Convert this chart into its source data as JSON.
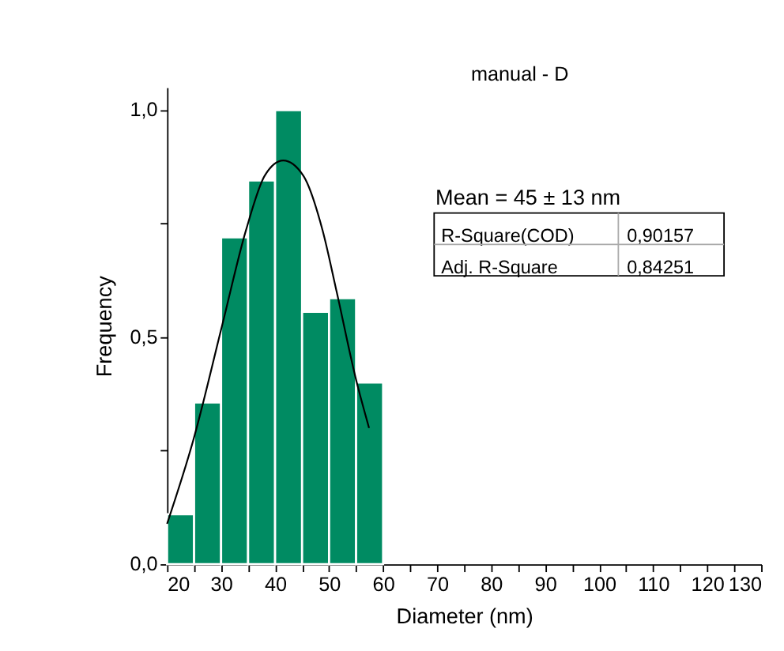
{
  "chart_data": {
    "type": "histogram",
    "title": "manual - D",
    "xlabel": "Diameter (nm)",
    "ylabel": "Frequency",
    "bins": [
      20,
      25,
      30,
      35,
      40,
      45,
      50,
      55,
      60
    ],
    "values": [
      0.11,
      0.356,
      0.72,
      0.845,
      1.0,
      0.556,
      0.586,
      0.4
    ],
    "color": "#008b62",
    "series": [
      {
        "type": "line",
        "color": "#000000",
        "x": [
          20.0,
          24.9,
          30.2,
          34.6,
          38.1,
          41.5,
          45.2,
          48.8,
          51.4,
          54.9,
          57.4
        ],
        "values": [
          0.089,
          0.275,
          0.526,
          0.735,
          0.856,
          0.889,
          0.856,
          0.735,
          0.6,
          0.411,
          0.3
        ]
      }
    ],
    "xlim": [
      20,
      130
    ],
    "xticks": [
      20,
      {
        "value": 25,
        "label": null
      },
      30,
      {
        "value": 35,
        "label": null
      },
      40,
      {
        "value": 45,
        "label": null
      },
      50,
      {
        "value": 55,
        "label": null
      },
      60,
      {
        "value": 65,
        "label": null
      },
      70,
      {
        "value": 75,
        "label": null
      },
      80,
      {
        "value": 85,
        "label": null
      },
      90,
      {
        "value": 95,
        "label": null
      },
      100,
      {
        "value": 105,
        "label": null
      },
      110,
      {
        "value": 115,
        "label": null
      },
      120,
      {
        "value": 125,
        "label": null
      },
      130
    ],
    "ylim": [
      0,
      1.05
    ],
    "yticks": [
      {
        "value": 0,
        "label": "0,0"
      },
      {
        "value": 0.25,
        "label": null
      },
      {
        "value": 0.5,
        "label": "0,5"
      },
      {
        "value": 0.75,
        "label": null
      },
      {
        "value": 1.0,
        "label": "1,0"
      }
    ],
    "annotations": [
      "Mean = 45 ± 13 nm",
      "R-Square(COD)",
      "0,90157",
      "Adj. R-Square",
      "0,84251"
    ],
    "grid": false
  }
}
